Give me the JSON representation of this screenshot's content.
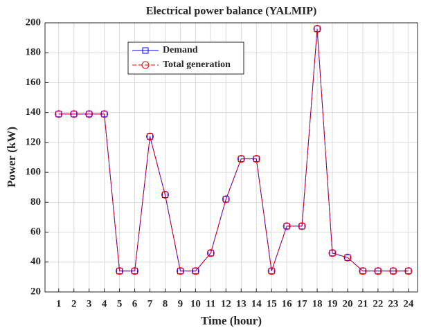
{
  "chart_data": {
    "type": "line",
    "title": "Electrical power balance (YALMIP)",
    "x_label": "Time (hour)",
    "y_label": "Power (kW)",
    "x": [
      1,
      2,
      3,
      4,
      5,
      6,
      7,
      8,
      9,
      10,
      11,
      12,
      13,
      14,
      15,
      16,
      17,
      18,
      19,
      20,
      21,
      22,
      23,
      24
    ],
    "series": [
      {
        "name": "Demand",
        "color": "#0000ff",
        "marker": "square",
        "dash": false,
        "values": [
          139,
          139,
          139,
          139,
          34,
          34,
          124,
          85,
          34,
          34,
          46,
          82,
          109,
          109,
          34,
          64,
          64,
          196,
          46,
          43,
          34,
          34,
          34,
          34
        ]
      },
      {
        "name": "Total generation",
        "color": "#ff0000",
        "marker": "circle",
        "dash": true,
        "values": [
          139,
          139,
          139,
          139,
          34,
          34,
          124,
          85,
          34,
          34,
          46,
          82,
          109,
          109,
          34,
          64,
          64,
          196,
          46,
          43,
          34,
          34,
          34,
          34
        ]
      }
    ],
    "xlim": [
      0.1,
      24.6
    ],
    "xticks": [
      1,
      2,
      3,
      4,
      5,
      6,
      7,
      8,
      9,
      10,
      11,
      12,
      13,
      14,
      15,
      16,
      17,
      18,
      19,
      20,
      21,
      22,
      23,
      24
    ],
    "ylim": [
      20,
      200
    ],
    "yticks": [
      20,
      40,
      60,
      80,
      100,
      120,
      140,
      160,
      180,
      200
    ],
    "grid": true,
    "legend": "upper-left"
  }
}
